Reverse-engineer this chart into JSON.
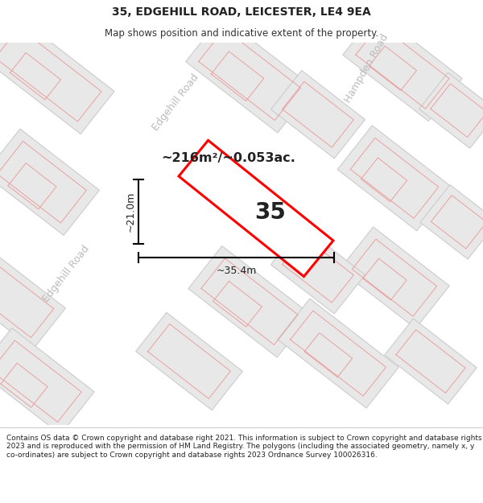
{
  "title": "35, EDGEHILL ROAD, LEICESTER, LE4 9EA",
  "subtitle": "Map shows position and indicative extent of the property.",
  "footer": "Contains OS data © Crown copyright and database right 2021. This information is subject to Crown copyright and database rights 2023 and is reproduced with the permission of HM Land Registry. The polygons (including the associated geometry, namely x, y co-ordinates) are subject to Crown copyright and database rights 2023 Ordnance Survey 100026316.",
  "map_bg": "#f7f7f7",
  "block_fill": "#e8e8e8",
  "block_edge": "#cccccc",
  "road_line_color": "#e8a0a0",
  "subject_color": "#ff0000",
  "area_label": "~216m²/~0.053ac.",
  "width_label": "~35.4m",
  "height_label": "~21.0m",
  "house_number": "35",
  "street_label_color": "#bbbbbb",
  "ang": -38,
  "title_fontsize": 10,
  "subtitle_fontsize": 8.5,
  "footer_fontsize": 6.5
}
